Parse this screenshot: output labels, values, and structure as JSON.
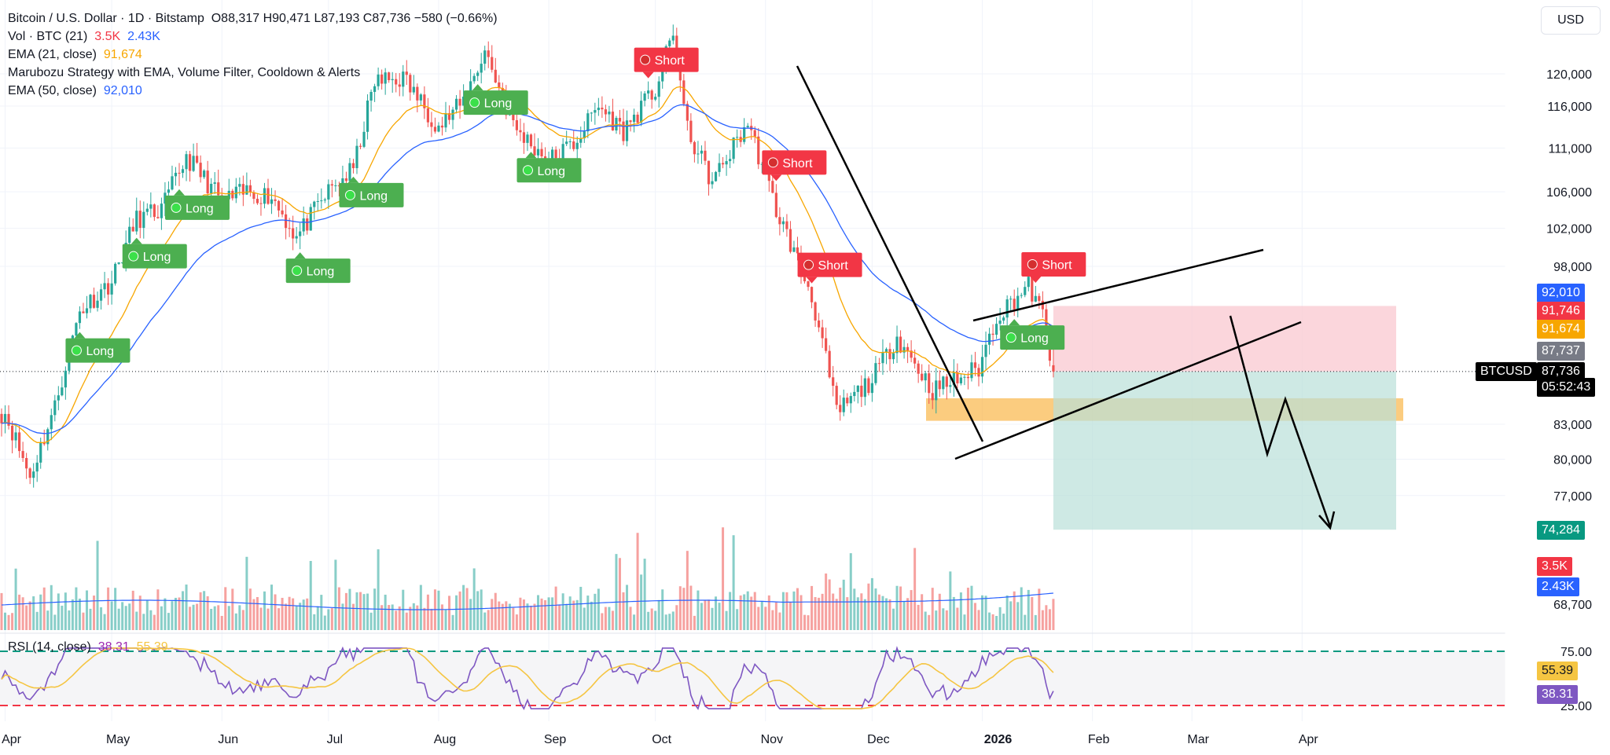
{
  "legend": {
    "symbol": "Bitcoin / U.S. Dollar · 1D · Bitstamp",
    "ohlc": "O88,317  H90,471  L87,193  C87,736  −580 (−0.66%)",
    "vol_label": "Vol · BTC (21)",
    "vol_value1": "3.5K",
    "vol_value2": "2.43K",
    "ema21_label": "EMA (21, close)",
    "ema21_value": "91,674",
    "strategy_label": "Marubozu Strategy with EMA, Volume Filter, Cooldown & Alerts",
    "ema50_label": "EMA (50, close)",
    "ema50_value": "92,010"
  },
  "currency_button": "USD",
  "rsi_legend": {
    "label": "RSI (14, close)",
    "value1": "38.31",
    "value2": "55.39"
  },
  "price_tags": {
    "ema50": "92,010",
    "volume_high": "91,746",
    "ema21": "91,674",
    "last_grey": "87,737",
    "symbol": "BTCUSD",
    "close": "87,736",
    "countdown": "05:52:43",
    "target": "74,284",
    "vol1": "3.5K",
    "vol2": "2.43K",
    "rsi_sma": "55.39",
    "rsi": "38.31"
  },
  "colors": {
    "up": "#26a69a",
    "down": "#ef5350",
    "ema21": "#f7a600",
    "ema50": "#2962ff",
    "long": "#4caf50",
    "short": "#f23645",
    "rsi": "#7e57c2",
    "rsi_ma": "#f5c542",
    "support_zone": "#f9b13a",
    "risk_zone": "#f9c5cd",
    "reward_zone": "#b9e0d9"
  },
  "chart_data": [
    {
      "type": "candlestick",
      "title": "Bitcoin / U.S. Dollar · 1D · Bitstamp",
      "y_axis_ticks": [
        120000,
        116000,
        111000,
        106000,
        102000,
        98000,
        83000,
        80000,
        77000,
        68700
      ],
      "x_axis_ticks": [
        "Apr",
        "May",
        "Jun",
        "Jul",
        "Aug",
        "Sep",
        "Oct",
        "Nov",
        "Dec",
        "2026",
        "Feb",
        "Mar",
        "Apr"
      ],
      "close_path": [
        [
          "2025-04-01",
          84000
        ],
        [
          "2025-04-08",
          78500
        ],
        [
          "2025-04-15",
          84500
        ],
        [
          "2025-04-22",
          93500
        ],
        [
          "2025-05-01",
          96500
        ],
        [
          "2025-05-08",
          103000
        ],
        [
          "2025-05-15",
          104000
        ],
        [
          "2025-05-22",
          110000
        ],
        [
          "2025-06-01",
          105000
        ],
        [
          "2025-06-08",
          106000
        ],
        [
          "2025-06-15",
          105500
        ],
        [
          "2025-06-22",
          101000
        ],
        [
          "2025-07-01",
          106000
        ],
        [
          "2025-07-08",
          108500
        ],
        [
          "2025-07-14",
          119000
        ],
        [
          "2025-07-22",
          119500
        ],
        [
          "2025-08-01",
          113500
        ],
        [
          "2025-08-08",
          116500
        ],
        [
          "2025-08-14",
          123000
        ],
        [
          "2025-08-22",
          113500
        ],
        [
          "2025-09-01",
          109500
        ],
        [
          "2025-09-08",
          111500
        ],
        [
          "2025-09-15",
          116000
        ],
        [
          "2025-09-22",
          113000
        ],
        [
          "2025-10-01",
          118000
        ],
        [
          "2025-10-06",
          125000
        ],
        [
          "2025-10-10",
          113000
        ],
        [
          "2025-10-17",
          107000
        ],
        [
          "2025-10-27",
          114000
        ],
        [
          "2025-11-04",
          104000
        ],
        [
          "2025-11-14",
          95000
        ],
        [
          "2025-11-21",
          84000
        ],
        [
          "2025-12-01",
          87000
        ],
        [
          "2025-12-08",
          91000
        ],
        [
          "2025-12-18",
          86000
        ],
        [
          "2025-12-31",
          88000
        ],
        [
          "2026-01-05",
          93000
        ],
        [
          "2026-01-14",
          96000
        ],
        [
          "2026-01-18",
          93000
        ],
        [
          "2026-01-21",
          87736
        ]
      ],
      "last": {
        "open": 88317,
        "high": 90471,
        "low": 87193,
        "close": 87736,
        "change": -580,
        "change_pct": -0.66
      },
      "ema21_last": 91674,
      "ema50_last": 92010,
      "signals": [
        {
          "date": "2025-04-22",
          "label": "Long"
        },
        {
          "date": "2025-05-08",
          "label": "Long"
        },
        {
          "date": "2025-05-20",
          "label": "Long"
        },
        {
          "date": "2025-06-23",
          "label": "Long"
        },
        {
          "date": "2025-07-08",
          "label": "Long"
        },
        {
          "date": "2025-08-12",
          "label": "Long"
        },
        {
          "date": "2025-08-27",
          "label": "Long"
        },
        {
          "date": "2025-09-29",
          "label": "Short"
        },
        {
          "date": "2025-11-04",
          "label": "Short"
        },
        {
          "date": "2025-11-14",
          "label": "Short"
        },
        {
          "date": "2026-01-10",
          "label": "Long"
        },
        {
          "date": "2026-01-16",
          "label": "Short"
        }
      ],
      "support_zone": [
        83300,
        85300
      ],
      "position": {
        "entry": 87736,
        "stop": 94000,
        "target": 74284
      }
    },
    {
      "type": "bar",
      "title": "Vol · BTC (21)",
      "last_values": [
        "3.5K",
        "2.43K"
      ]
    },
    {
      "type": "line",
      "title": "RSI (14, close)",
      "y_axis_ticks": [
        75.0,
        25.0
      ],
      "last": {
        "rsi": 38.31,
        "rsi_ma": 55.39
      }
    }
  ]
}
